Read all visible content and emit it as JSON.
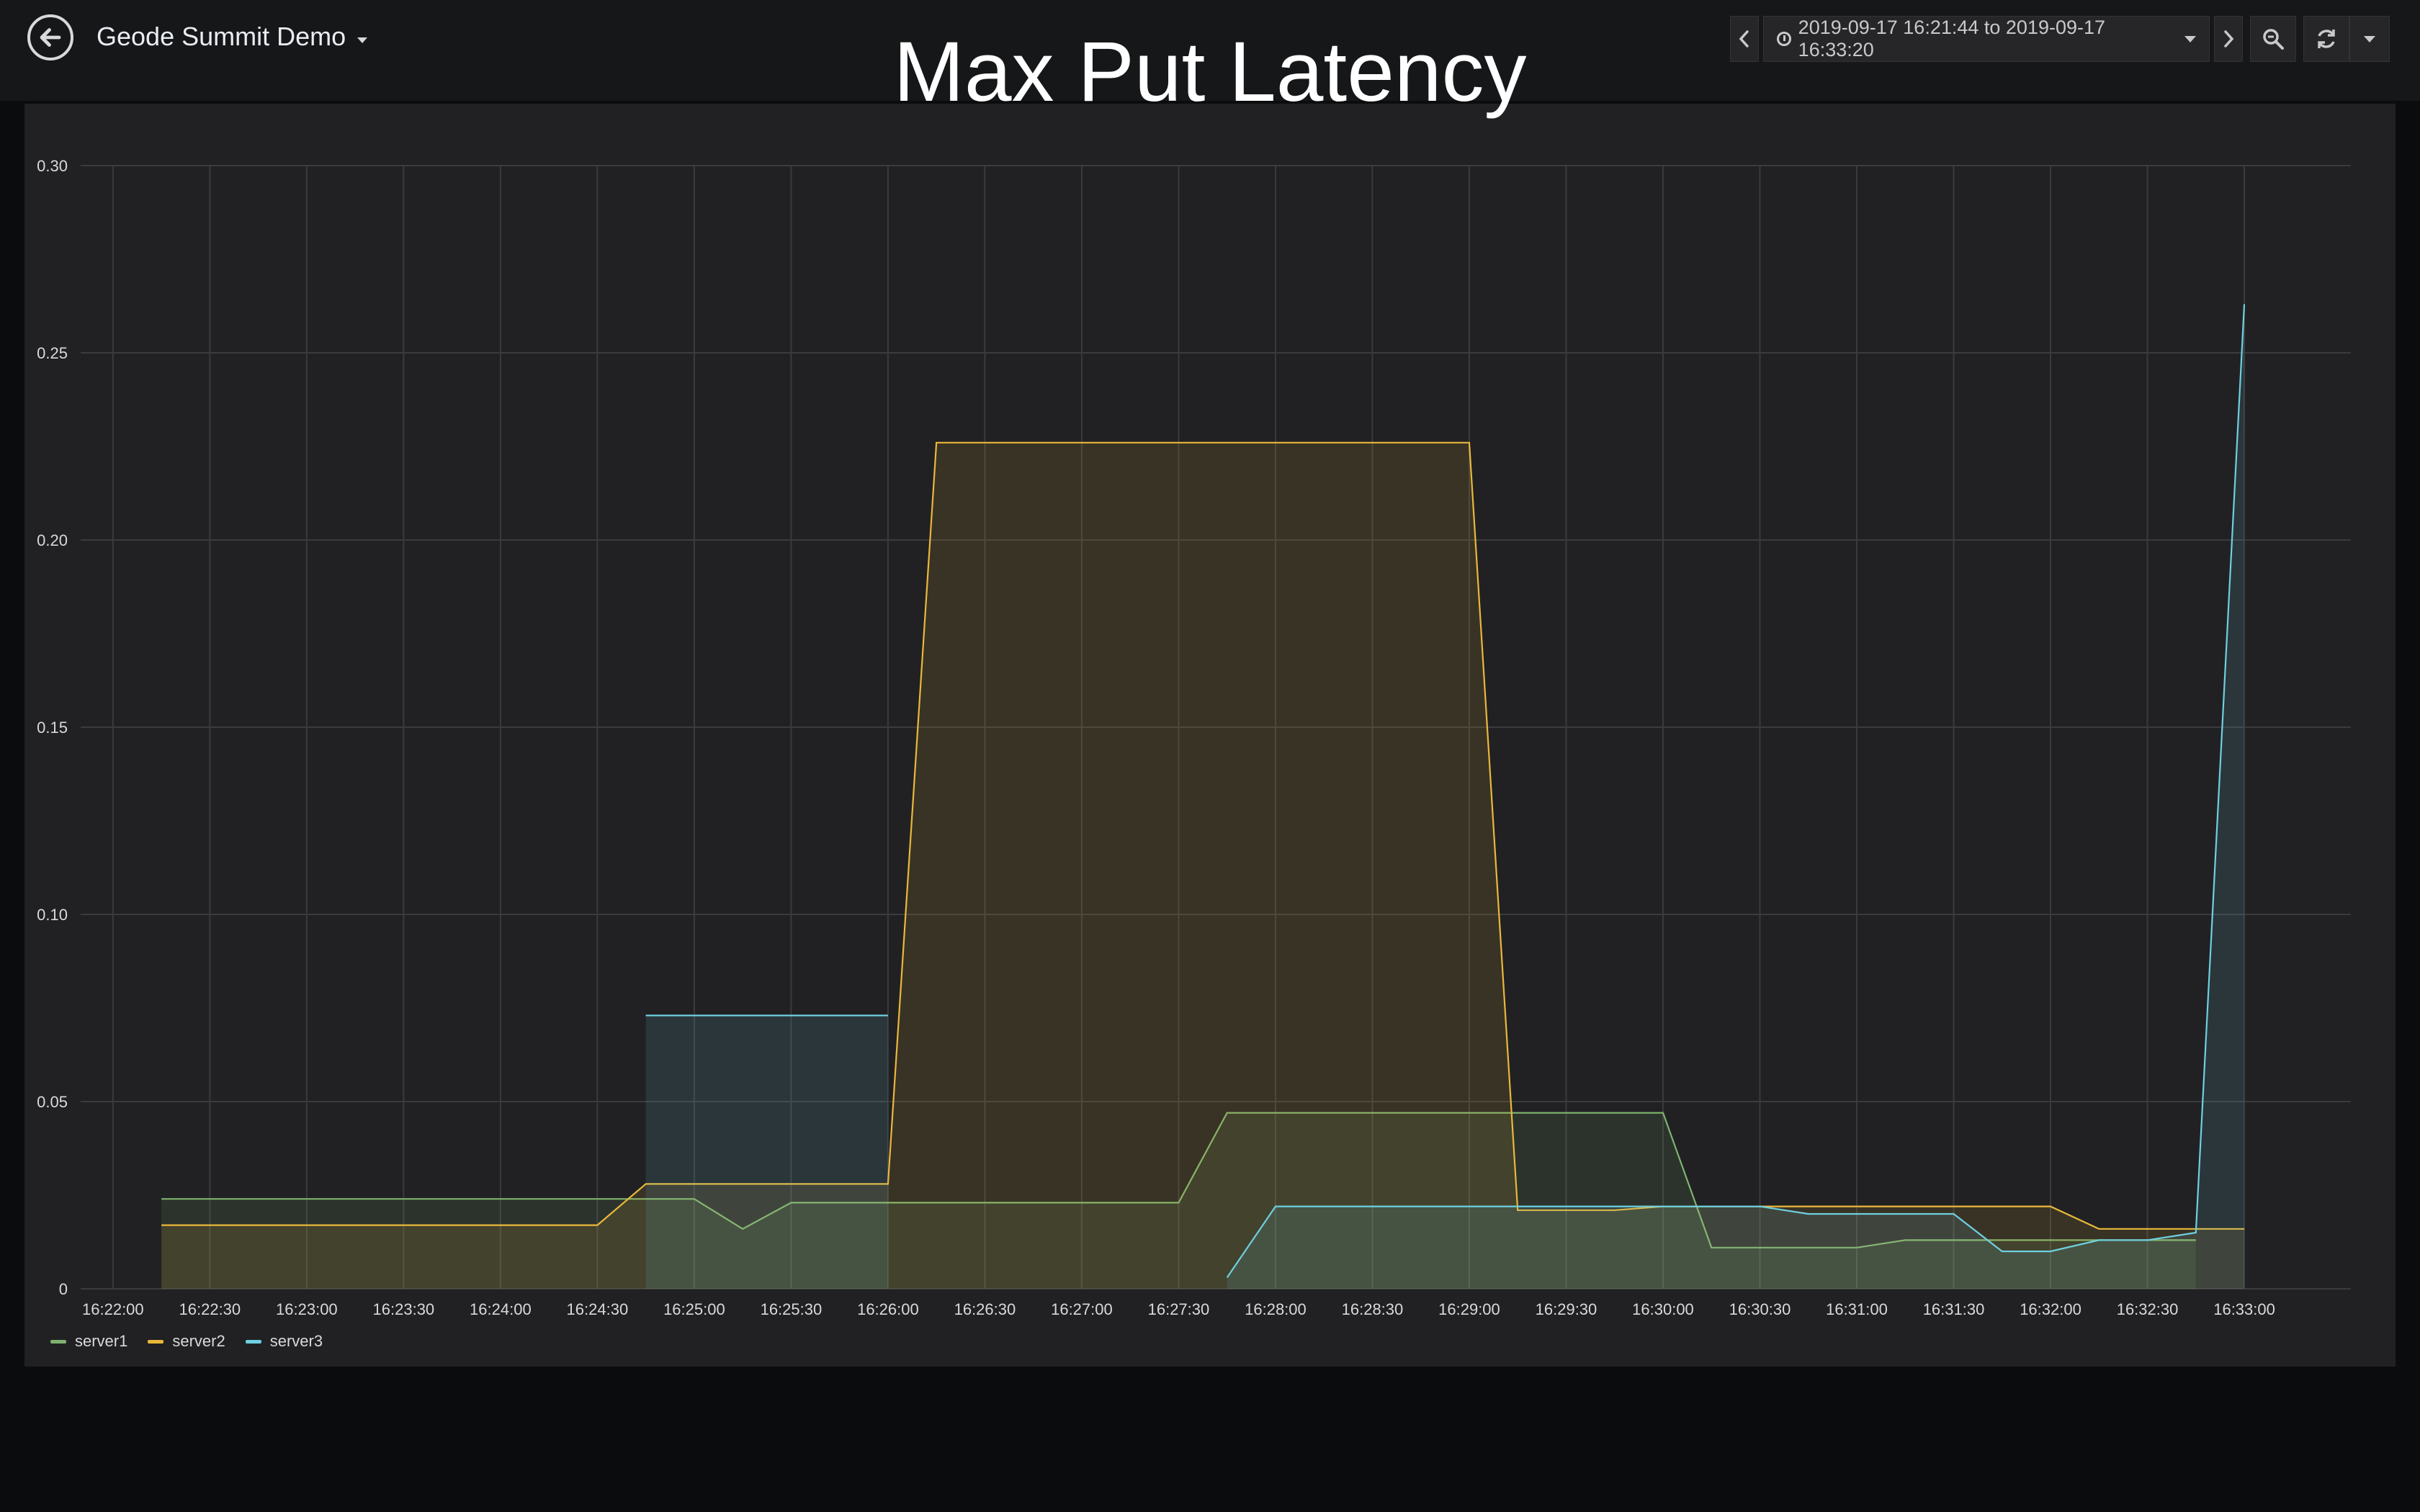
{
  "header": {
    "dashboard_title": "Geode Summit Demo",
    "panel_title": "Max Put Latency",
    "time_range": "2019-09-17 16:21:44 to 2019-09-17 16:33:20",
    "icons": {
      "back": "arrow-left-circle-icon",
      "prev": "chevron-left-icon",
      "next": "chevron-right-icon",
      "clock": "clock-icon",
      "zoom": "zoom-out-icon",
      "refresh": "refresh-icon",
      "refresh_menu": "caret-down-icon"
    }
  },
  "colors": {
    "server1": "#7eb26d",
    "server2": "#eab839",
    "server3": "#6ed0e0",
    "grid": "#3b3b3e",
    "axis_text": "#d8d9da"
  },
  "legend": [
    {
      "name": "server1",
      "color": "#7eb26d"
    },
    {
      "name": "server2",
      "color": "#eab839"
    },
    {
      "name": "server3",
      "color": "#6ed0e0"
    }
  ],
  "chart_data": {
    "type": "area",
    "title": "Max Put Latency",
    "xlabel": "",
    "ylabel": "",
    "x_unit": "time (HH:MM:SS)",
    "xlim": [
      "16:21:50",
      "16:33:33"
    ],
    "ylim": [
      0,
      0.3
    ],
    "x_ticks": [
      "16:22:00",
      "16:22:30",
      "16:23:00",
      "16:23:30",
      "16:24:00",
      "16:24:30",
      "16:25:00",
      "16:25:30",
      "16:26:00",
      "16:26:30",
      "16:27:00",
      "16:27:30",
      "16:28:00",
      "16:28:30",
      "16:29:00",
      "16:29:30",
      "16:30:00",
      "16:30:30",
      "16:31:00",
      "16:31:30",
      "16:32:00",
      "16:32:30",
      "16:33:00"
    ],
    "y_ticks": [
      "0",
      "0.05",
      "0.10",
      "0.15",
      "0.20",
      "0.25",
      "0.30"
    ],
    "y_tick_values": [
      0,
      0.05,
      0.1,
      0.15,
      0.2,
      0.25,
      0.3
    ],
    "grid": true,
    "legend_position": "bottom-left",
    "series": [
      {
        "name": "server1",
        "points": [
          [
            "16:22:15",
            0.024
          ],
          [
            "16:24:45",
            0.024
          ],
          [
            "16:25:00",
            0.024
          ],
          [
            "16:25:15",
            0.016
          ],
          [
            "16:25:30",
            0.023
          ],
          [
            "16:27:30",
            0.023
          ],
          [
            "16:27:45",
            0.047
          ],
          [
            "16:30:00",
            0.047
          ],
          [
            "16:30:15",
            0.011
          ],
          [
            "16:31:00",
            0.011
          ],
          [
            "16:31:15",
            0.013
          ],
          [
            "16:32:45",
            0.013
          ]
        ]
      },
      {
        "name": "server2",
        "points": [
          [
            "16:22:15",
            0.017
          ],
          [
            "16:24:30",
            0.017
          ],
          [
            "16:24:45",
            0.028
          ],
          [
            "16:26:00",
            0.028
          ],
          [
            "16:26:15",
            0.226
          ],
          [
            "16:29:00",
            0.226
          ],
          [
            "16:29:15",
            0.021
          ],
          [
            "16:29:45",
            0.021
          ],
          [
            "16:30:00",
            0.022
          ],
          [
            "16:32:00",
            0.022
          ],
          [
            "16:32:15",
            0.016
          ],
          [
            "16:33:00",
            0.016
          ]
        ]
      },
      {
        "name": "server3",
        "points": [
          [
            "16:24:45",
            0.073
          ],
          [
            "16:26:00",
            0.073
          ],
          [
            "16:26:00",
            null
          ],
          [
            "16:27:45",
            0.003
          ],
          [
            "16:28:00",
            0.022
          ],
          [
            "16:30:30",
            0.022
          ],
          [
            "16:30:45",
            0.02
          ],
          [
            "16:31:30",
            0.02
          ],
          [
            "16:31:45",
            0.01
          ],
          [
            "16:32:00",
            0.01
          ],
          [
            "16:32:15",
            0.013
          ],
          [
            "16:32:30",
            0.013
          ],
          [
            "16:32:45",
            0.015
          ],
          [
            "16:33:00",
            0.263
          ]
        ]
      }
    ]
  }
}
